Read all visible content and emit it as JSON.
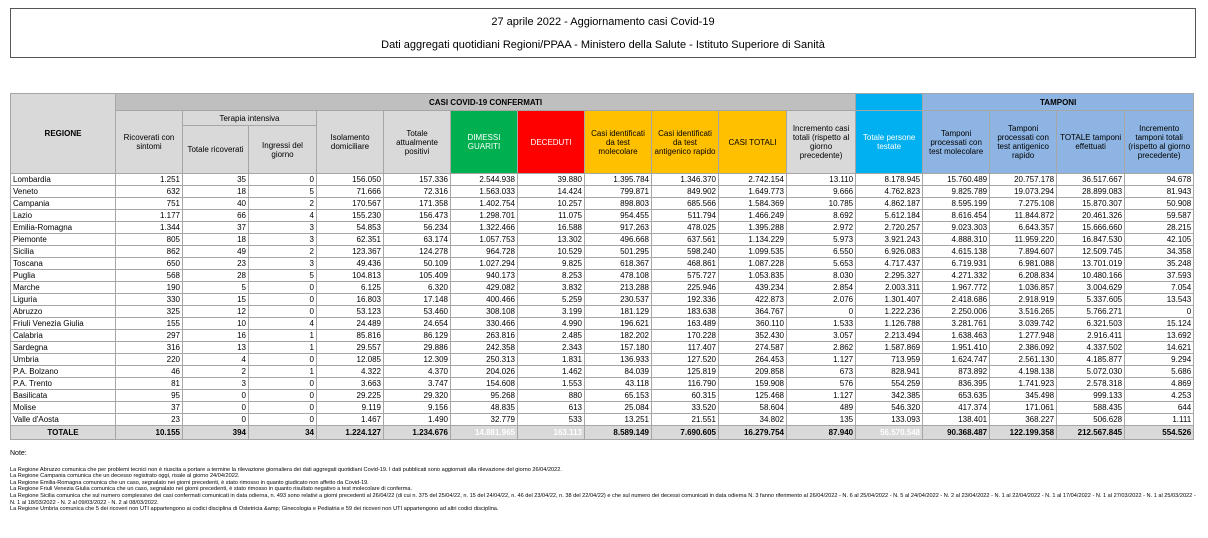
{
  "header": {
    "title": "27 aprile 2022 - Aggiornamento casi Covid-19",
    "subtitle": "Dati aggregati quotidiani Regioni/PPAA - Ministero della Salute - Istituto Superiore di Sanità"
  },
  "table": {
    "group_casi": "CASI COVID-19 CONFERMATI",
    "group_terapia": "Terapia intensiva",
    "group_tamponi": "TAMPONI",
    "columns": [
      "REGIONE",
      "Ricoverati con sintomi",
      "Totale ricoverati",
      "Ingressi del giorno",
      "Isolamento domiciliare",
      "Totale attualmente positivi",
      "DIMESSI GUARITI",
      "DECEDUTI",
      "Casi identificati da test molecolare",
      "Casi identificati da test antigenico rapido",
      "CASI TOTALI",
      "Incremento casi totali (rispetto al giorno precedente)",
      "Totale persone testate",
      "Tamponi processati con test molecolare",
      "Tamponi processati con test antigenico rapido",
      "TOTALE tamponi effettuati",
      "Incremento tamponi totali (rispetto al giorno precedente)"
    ],
    "rows": [
      [
        "Lombardia",
        "1.251",
        "35",
        "0",
        "156.050",
        "157.336",
        "2.544.938",
        "39.880",
        "1.395.784",
        "1.346.370",
        "2.742.154",
        "13.110",
        "8.178.945",
        "15.760.489",
        "20.757.178",
        "36.517.667",
        "94.678"
      ],
      [
        "Veneto",
        "632",
        "18",
        "5",
        "71.666",
        "72.316",
        "1.563.033",
        "14.424",
        "799.871",
        "849.902",
        "1.649.773",
        "9.666",
        "4.762.823",
        "9.825.789",
        "19.073.294",
        "28.899.083",
        "81.943"
      ],
      [
        "Campania",
        "751",
        "40",
        "2",
        "170.567",
        "171.358",
        "1.402.754",
        "10.257",
        "898.803",
        "685.566",
        "1.584.369",
        "10.785",
        "4.862.187",
        "8.595.199",
        "7.275.108",
        "15.870.307",
        "50.908"
      ],
      [
        "Lazio",
        "1.177",
        "66",
        "4",
        "155.230",
        "156.473",
        "1.298.701",
        "11.075",
        "954.455",
        "511.794",
        "1.466.249",
        "8.692",
        "5.612.184",
        "8.616.454",
        "11.844.872",
        "20.461.326",
        "59.587"
      ],
      [
        "Emilia-Romagna",
        "1.344",
        "37",
        "3",
        "54.853",
        "56.234",
        "1.322.466",
        "16.588",
        "917.263",
        "478.025",
        "1.395.288",
        "2.972",
        "2.720.257",
        "9.023.303",
        "6.643.357",
        "15.666.660",
        "28.215"
      ],
      [
        "Piemonte",
        "805",
        "18",
        "3",
        "62.351",
        "63.174",
        "1.057.753",
        "13.302",
        "496.668",
        "637.561",
        "1.134.229",
        "5.973",
        "3.921.243",
        "4.888.310",
        "11.959.220",
        "16.847.530",
        "42.105"
      ],
      [
        "Sicilia",
        "862",
        "49",
        "2",
        "123.367",
        "124.278",
        "964.728",
        "10.529",
        "501.295",
        "598.240",
        "1.099.535",
        "6.550",
        "6.926.083",
        "4.615.138",
        "7.894.607",
        "12.509.745",
        "34.358"
      ],
      [
        "Toscana",
        "650",
        "23",
        "3",
        "49.436",
        "50.109",
        "1.027.294",
        "9.825",
        "618.367",
        "468.861",
        "1.087.228",
        "5.653",
        "4.717.437",
        "6.719.931",
        "6.981.088",
        "13.701.019",
        "35.248"
      ],
      [
        "Puglia",
        "568",
        "28",
        "5",
        "104.813",
        "105.409",
        "940.173",
        "8.253",
        "478.108",
        "575.727",
        "1.053.835",
        "8.030",
        "2.295.327",
        "4.271.332",
        "6.208.834",
        "10.480.166",
        "37.593"
      ],
      [
        "Marche",
        "190",
        "5",
        "0",
        "6.125",
        "6.320",
        "429.082",
        "3.832",
        "213.288",
        "225.946",
        "439.234",
        "2.854",
        "2.003.311",
        "1.967.772",
        "1.036.857",
        "3.004.629",
        "7.054"
      ],
      [
        "Liguria",
        "330",
        "15",
        "0",
        "16.803",
        "17.148",
        "400.466",
        "5.259",
        "230.537",
        "192.336",
        "422.873",
        "2.076",
        "1.301.407",
        "2.418.686",
        "2.918.919",
        "5.337.605",
        "13.543"
      ],
      [
        "Abruzzo",
        "325",
        "12",
        "0",
        "53.123",
        "53.460",
        "308.108",
        "3.199",
        "181.129",
        "183.638",
        "364.767",
        "0",
        "1.222.236",
        "2.250.006",
        "3.516.265",
        "5.766.271",
        "0"
      ],
      [
        "Friuli Venezia Giulia",
        "155",
        "10",
        "4",
        "24.489",
        "24.654",
        "330.466",
        "4.990",
        "196.621",
        "163.489",
        "360.110",
        "1.533",
        "1.126.788",
        "3.281.761",
        "3.039.742",
        "6.321.503",
        "15.124"
      ],
      [
        "Calabria",
        "297",
        "16",
        "1",
        "85.816",
        "86.129",
        "263.816",
        "2.485",
        "182.202",
        "170.228",
        "352.430",
        "3.057",
        "2.213.494",
        "1.638.463",
        "1.277.948",
        "2.916.411",
        "13.692"
      ],
      [
        "Sardegna",
        "316",
        "13",
        "1",
        "29.557",
        "29.886",
        "242.358",
        "2.343",
        "157.180",
        "117.407",
        "274.587",
        "2.862",
        "1.587.869",
        "1.951.410",
        "2.386.092",
        "4.337.502",
        "14.621"
      ],
      [
        "Umbria",
        "220",
        "4",
        "0",
        "12.085",
        "12.309",
        "250.313",
        "1.831",
        "136.933",
        "127.520",
        "264.453",
        "1.127",
        "713.959",
        "1.624.747",
        "2.561.130",
        "4.185.877",
        "9.294"
      ],
      [
        "P.A. Bolzano",
        "46",
        "2",
        "1",
        "4.322",
        "4.370",
        "204.026",
        "1.462",
        "84.039",
        "125.819",
        "209.858",
        "673",
        "828.941",
        "873.892",
        "4.198.138",
        "5.072.030",
        "5.686"
      ],
      [
        "P.A. Trento",
        "81",
        "3",
        "0",
        "3.663",
        "3.747",
        "154.608",
        "1.553",
        "43.118",
        "116.790",
        "159.908",
        "576",
        "554.259",
        "836.395",
        "1.741.923",
        "2.578.318",
        "4.869"
      ],
      [
        "Basilicata",
        "95",
        "0",
        "0",
        "29.225",
        "29.320",
        "95.268",
        "880",
        "65.153",
        "60.315",
        "125.468",
        "1.127",
        "342.385",
        "653.635",
        "345.498",
        "999.133",
        "4.253"
      ],
      [
        "Molise",
        "37",
        "0",
        "0",
        "9.119",
        "9.156",
        "48.835",
        "613",
        "25.084",
        "33.520",
        "58.604",
        "489",
        "546.320",
        "417.374",
        "171.061",
        "588.435",
        "644"
      ],
      [
        "Valle d'Aosta",
        "23",
        "0",
        "0",
        "1.467",
        "1.490",
        "32.779",
        "533",
        "13.251",
        "21.551",
        "34.802",
        "135",
        "133.093",
        "138.401",
        "368.227",
        "506.628",
        "1.111"
      ]
    ],
    "total": [
      "TOTALE",
      "10.155",
      "394",
      "34",
      "1.224.127",
      "1.234.676",
      "14.881.965",
      "163.113",
      "8.589.149",
      "7.690.605",
      "16.279.754",
      "87.940",
      "56.570.548",
      "90.368.487",
      "122.199.358",
      "212.567.845",
      "554.526"
    ]
  },
  "notes": {
    "title": "Note:",
    "lines": [
      "La Regione Abruzzo comunica che per problemi tecnici non è riuscita a portare a termine la rilevazione giornaliera dei dati aggregati quotidiani Covid-19. I dati pubblicati sono aggiornati alla rilevazione del giorno 26/04/2022.",
      "La Regione Campania comunica che un decesso registrato oggi, risale al giorno 24/04/2022.",
      "La Regione Emilia-Romagna comunica che un caso, segnalato nei giorni precedenti, è stato rimosso in quanto giudicato non affetto da Covid-19.",
      "La Regione Friuli Venezia Giulia comunica che un caso, segnalato nei giorni precedenti, è stato rimosso in quanto risultato negativo a test molecolare di conferma.",
      "La Regione Sicilia comunica che sul numero complessivo dei casi confermati comunicati in data odierna, n. 493 sono relativi a giorni precedenti al 26/04/22 (di cui n. 375 del 25/04/22, n. 15 del 24/04/22, n. 46 del 23/04/22, n. 38 del 22/04/22) e che sul numero dei decessi comunicati in data odierna N. 3 fanno riferimento al 26/04/2022 - N. 6 al 25/04/2022 - N. 5 al 24/04/2022 - N. 2 al 23/04/2022 - N. 1 al 22/04/2022 - N. 1 al 17/04/2022 - N. 1 al 27/03/2022 - N. 1 al 25/03/2022 - N. 1 al 18/03/2022 - N. 2 al 09/03/2022 - N. 2 al 08/03/2022.",
      "La Regione Umbria comunica che 5 dei ricoveri non UTI appartengono ai codici disciplina di Ostetricia &amp; Ginecologia e Pediatria e 59 dei ricoveri non UTI appartengono ad altri codici disciplina."
    ]
  }
}
